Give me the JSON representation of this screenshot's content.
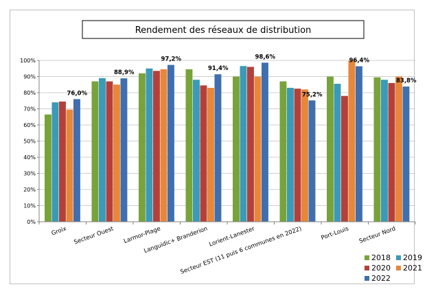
{
  "chart_data": {
    "type": "bar",
    "title": "Rendement des réseaux de distribution",
    "categories": [
      "Groix",
      "Secteur Ouest",
      "Larmor-Plage",
      "Languidic+ Branderion",
      "Lorient-Lanester",
      "Secteur EST (11 puis 6 communes en 2022)",
      "Port-Louis",
      "Secteur Nord"
    ],
    "series": [
      {
        "name": "2018",
        "color": "#77a33a",
        "values": [
          66.5,
          87,
          92,
          94.5,
          90,
          87,
          90,
          89.5
        ]
      },
      {
        "name": "2019",
        "color": "#3a9ab8",
        "values": [
          74,
          89,
          95,
          88,
          96.5,
          83,
          85.5,
          88
        ]
      },
      {
        "name": "2020",
        "color": "#b5403a",
        "values": [
          74.5,
          87,
          93.5,
          84.5,
          96,
          82.5,
          78,
          86
        ]
      },
      {
        "name": "2021",
        "color": "#e7873a",
        "values": [
          69.5,
          85,
          94.5,
          83,
          90,
          82,
          100,
          90
        ]
      },
      {
        "name": "2022",
        "color": "#3f6fae",
        "values": [
          76.0,
          88.9,
          97.2,
          91.4,
          98.6,
          75.2,
          96.4,
          83.8
        ]
      }
    ],
    "data_labels": [
      "76,0%",
      "88,9%",
      "97,2%",
      "91,4%",
      "98,6%",
      "75,2%",
      "96,4%",
      "83,8%"
    ],
    "ylim": [
      0,
      100
    ],
    "yticks": [
      "0%",
      "10%",
      "20%",
      "30%",
      "40%",
      "50%",
      "60%",
      "70%",
      "80%",
      "90%",
      "100%"
    ],
    "grid": true,
    "legend_position": "bottom-right"
  }
}
